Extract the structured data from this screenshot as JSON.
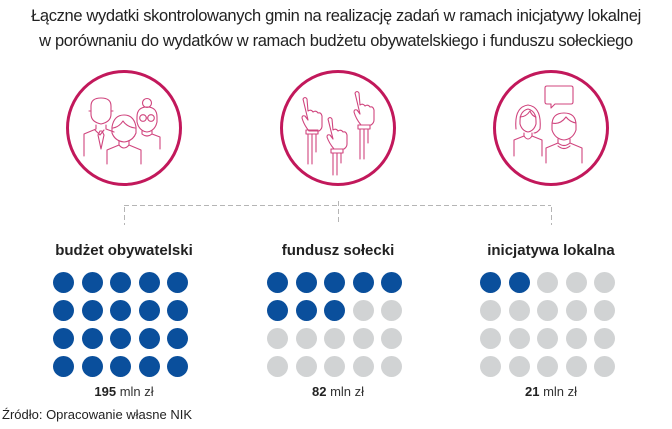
{
  "title": {
    "line1": "Łączne wydatki skontrolowanych gmin na realizację zadań w ramach inicjatywy lokalnej",
    "line2": "w porównaniu do wydatków w ramach budżetu obywatelskiego i funduszu sołeckiego"
  },
  "colors": {
    "accent_ring": "#c2185b",
    "icon_stroke": "#d0457e",
    "filled_dot": "#0a4f9c",
    "empty_dot": "#d1d3d4",
    "connector": "#b5b5b5"
  },
  "groups": [
    {
      "label": "budżet obywatelski",
      "icon": "people-group-icon",
      "value": "195",
      "unit": "mln zł",
      "filled_dots": 20,
      "total_dots": 20
    },
    {
      "label": "fundusz sołecki",
      "icon": "raised-hands-icon",
      "value": "82",
      "unit": "mln zł",
      "filled_dots": 8,
      "total_dots": 20
    },
    {
      "label": "inicjatywa lokalna",
      "icon": "conversation-icon",
      "value": "21",
      "unit": "mln zł",
      "filled_dots": 2,
      "total_dots": 20
    }
  ],
  "source": "Źródło: Opracowanie własne NIK",
  "chart_data": {
    "type": "pictogram",
    "title": "Łączne wydatki skontrolowanych gmin na realizację zadań w ramach inicjatywy lokalnej w porównaniu do wydatków w ramach budżetu obywatelskiego i funduszu sołeckiego",
    "categories": [
      "budżet obywatelski",
      "fundusz sołecki",
      "inicjatywa lokalna"
    ],
    "values": [
      195,
      82,
      21
    ],
    "unit": "mln zł",
    "dots_filled": [
      20,
      8,
      2
    ],
    "dots_total_per_category": 20,
    "grid": "5 columns × 4 rows of dots per category",
    "source": "Źródło: Opracowanie własne NIK"
  }
}
